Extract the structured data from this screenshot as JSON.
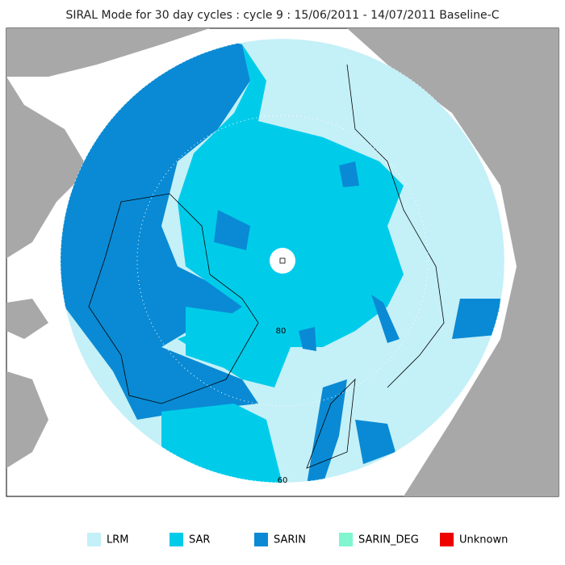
{
  "header": {
    "title": "SIRAL Mode for 30 day cycles : cycle 9 : 15/06/2011 - 14/07/2011 Baseline-C"
  },
  "map": {
    "latitude_labels": [
      "80",
      "60"
    ]
  },
  "legend": {
    "items": [
      {
        "label": "LRM",
        "color": "#c4f0f8"
      },
      {
        "label": "SAR",
        "color": "#00ccea"
      },
      {
        "label": "SARIN",
        "color": "#0a8ad4"
      },
      {
        "label": "SARIN_DEG",
        "color": "#7ff5d0"
      },
      {
        "label": "Unknown",
        "color": "#ee0000"
      }
    ]
  }
}
